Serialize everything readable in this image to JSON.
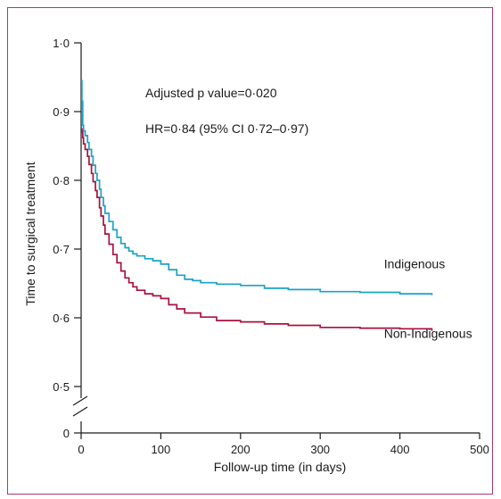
{
  "chart_data": {
    "type": "line",
    "subtype": "kaplan-meier step curve",
    "title": "",
    "xlabel": "Follow-up time (in days)",
    "ylabel": "Time to surgical treatment",
    "xlim": [
      0,
      500
    ],
    "ylim": [
      0.5,
      1.0
    ],
    "y_axis_break": true,
    "x_ticks": [
      0,
      100,
      200,
      300,
      400,
      500
    ],
    "x_tick_labels": [
      "0",
      "100",
      "200",
      "300",
      "400",
      "500"
    ],
    "y_ticks": [
      0,
      0.5,
      0.6,
      0.7,
      0.8,
      0.9,
      1.0
    ],
    "y_tick_labels": [
      "0",
      "0·5",
      "0·6",
      "0·7",
      "0·8",
      "0·9",
      "1·0"
    ],
    "grid": false,
    "legend": "none",
    "annotations": [
      "Adjusted p value=0·020",
      "HR=0·84 (95% CI 0·72–0·97)"
    ],
    "series": [
      {
        "name": "Indigenous",
        "color": "#1aa3c8",
        "x": [
          0,
          1,
          2,
          3,
          5,
          8,
          10,
          13,
          15,
          18,
          20,
          23,
          25,
          28,
          30,
          35,
          40,
          45,
          50,
          55,
          60,
          65,
          70,
          80,
          90,
          100,
          110,
          120,
          130,
          140,
          150,
          170,
          200,
          230,
          260,
          300,
          350,
          400,
          440
        ],
        "y": [
          0.945,
          0.915,
          0.88,
          0.872,
          0.865,
          0.855,
          0.845,
          0.835,
          0.822,
          0.81,
          0.8,
          0.787,
          0.775,
          0.763,
          0.752,
          0.74,
          0.728,
          0.717,
          0.708,
          0.702,
          0.697,
          0.693,
          0.69,
          0.686,
          0.683,
          0.678,
          0.67,
          0.662,
          0.656,
          0.654,
          0.651,
          0.649,
          0.647,
          0.643,
          0.641,
          0.638,
          0.637,
          0.635,
          0.633
        ]
      },
      {
        "name": "Non-Indigenous",
        "color": "#a8123e",
        "x": [
          0,
          1,
          2,
          3,
          5,
          8,
          10,
          13,
          15,
          18,
          20,
          23,
          25,
          28,
          30,
          35,
          40,
          45,
          50,
          55,
          60,
          65,
          70,
          80,
          90,
          100,
          110,
          120,
          130,
          150,
          170,
          200,
          230,
          260,
          300,
          350,
          400,
          440
        ],
        "y": [
          0.875,
          0.87,
          0.862,
          0.853,
          0.845,
          0.835,
          0.823,
          0.81,
          0.798,
          0.785,
          0.775,
          0.76,
          0.748,
          0.735,
          0.722,
          0.707,
          0.692,
          0.68,
          0.668,
          0.658,
          0.651,
          0.645,
          0.64,
          0.635,
          0.632,
          0.628,
          0.619,
          0.613,
          0.607,
          0.601,
          0.596,
          0.594,
          0.591,
          0.589,
          0.586,
          0.585,
          0.584,
          0.581
        ]
      }
    ],
    "series_labels": [
      {
        "text": "Indigenous",
        "x": 380,
        "y": 0.672
      },
      {
        "text": "Non-Indigenous",
        "x": 380,
        "y": 0.571
      }
    ]
  },
  "frame_color": "#b0366e"
}
